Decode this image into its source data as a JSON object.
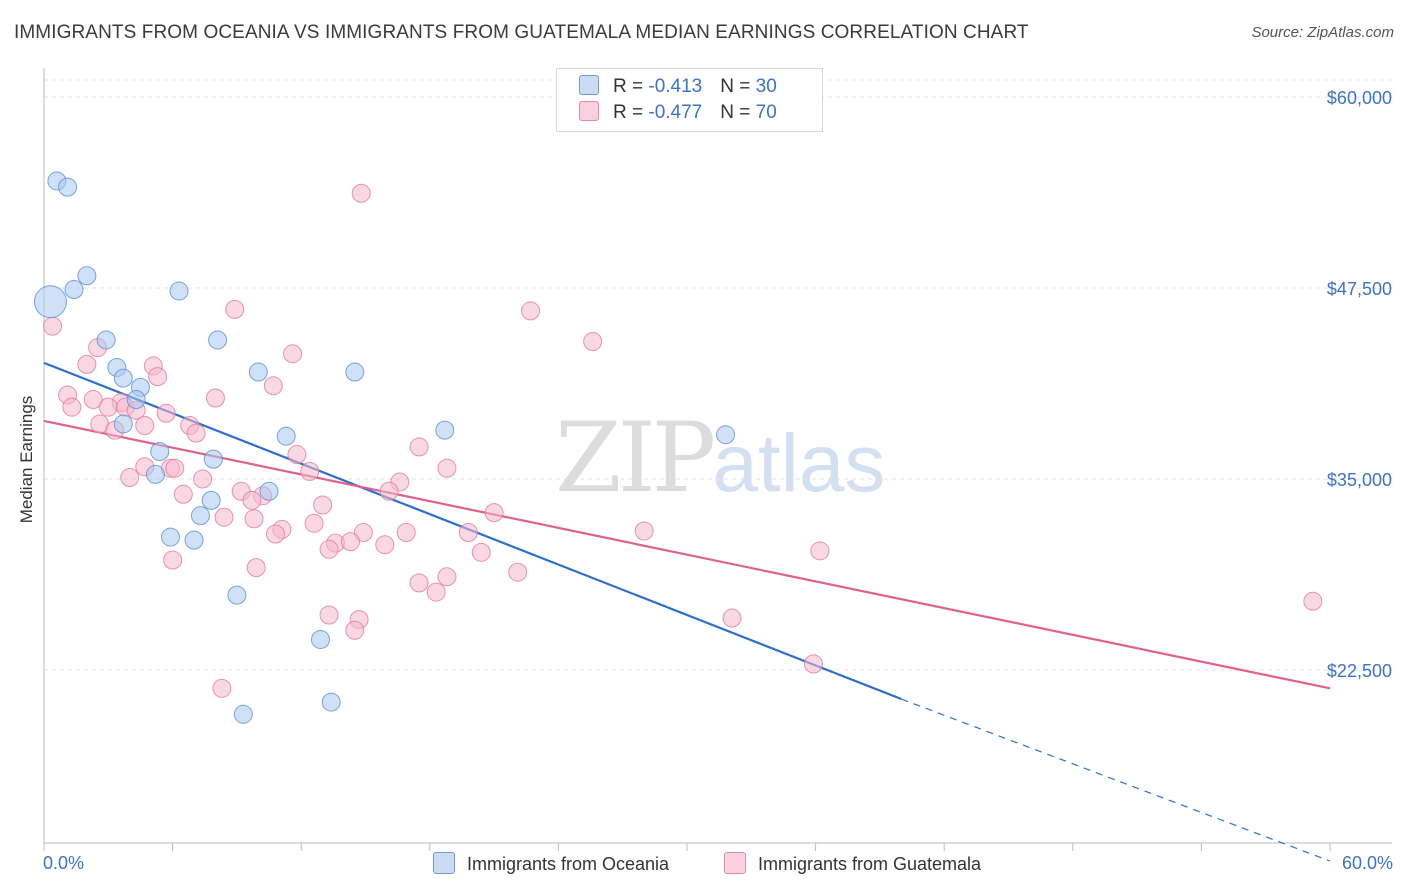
{
  "title": "IMMIGRANTS FROM OCEANIA VS IMMIGRANTS FROM GUATEMALA MEDIAN EARNINGS CORRELATION CHART",
  "source": "Source: ZipAtlas.com",
  "watermark": {
    "zip": "ZIP",
    "atlas": "atlas"
  },
  "legend": {
    "rows": [
      {
        "r_label": "R = ",
        "r_value": "-0.413",
        "n_label": "N = ",
        "n_value": "30",
        "color": "#a8c8ee"
      },
      {
        "r_label": "R = ",
        "r_value": "-0.477",
        "n_label": "N = ",
        "n_value": "70",
        "color": "#f5b8cc"
      }
    ]
  },
  "colors": {
    "oceania_fill": "#a8c8ee",
    "oceania_stroke": "#5b8fd1",
    "oceania_line": "#2d6fce",
    "guatemala_fill": "#f5b8cc",
    "guatemala_stroke": "#e07a9e",
    "guatemala_line": "#e0608e",
    "tick_label": "#3b73c8",
    "grid": "#e0e0e0"
  },
  "chart_data": {
    "type": "scatter",
    "ylabel": "Median Earnings",
    "x_tick_labels": {
      "min": "0.0%",
      "max": "60.0%"
    },
    "xlim": [
      0,
      60
    ],
    "ylim": [
      10000,
      62000
    ],
    "y_ticks": [
      {
        "value": 60000,
        "label": "$60,000"
      },
      {
        "value": 47500,
        "label": "$47,500"
      },
      {
        "value": 35000,
        "label": "$35,000"
      },
      {
        "value": 22500,
        "label": "$22,500"
      }
    ],
    "grid": "horizontal-dashed",
    "legend_position": "top-center",
    "series": [
      {
        "name": "Immigrants from Oceania",
        "points": [
          [
            0.6,
            54500
          ],
          [
            1.1,
            54100
          ],
          [
            0.3,
            46600,
            "large"
          ],
          [
            2.0,
            48300
          ],
          [
            1.4,
            47400
          ],
          [
            6.3,
            47300
          ],
          [
            2.9,
            44100
          ],
          [
            8.1,
            44100
          ],
          [
            3.4,
            42300
          ],
          [
            3.7,
            41600
          ],
          [
            4.5,
            41000
          ],
          [
            4.3,
            40200
          ],
          [
            10.0,
            42000
          ],
          [
            14.5,
            42000
          ],
          [
            3.7,
            38600
          ],
          [
            11.3,
            37800
          ],
          [
            18.7,
            38200
          ],
          [
            31.8,
            37900
          ],
          [
            5.4,
            36800
          ],
          [
            7.9,
            36300
          ],
          [
            5.2,
            35300
          ],
          [
            10.5,
            34200
          ],
          [
            7.3,
            32600
          ],
          [
            7.8,
            33600
          ],
          [
            5.9,
            31200
          ],
          [
            7.0,
            31000
          ],
          [
            9.0,
            27400
          ],
          [
            12.9,
            24500
          ],
          [
            9.3,
            19600
          ],
          [
            13.4,
            20400
          ]
        ],
        "trend": {
          "x0": 0.0,
          "y0": 42600,
          "x1": 40.0,
          "y1": 20600,
          "dashed_to_x": 60.0,
          "dashed_to_y": 10000
        }
      },
      {
        "name": "Immigrants from Guatemala",
        "points": [
          [
            0.4,
            45000
          ],
          [
            14.8,
            53700
          ],
          [
            22.7,
            46000
          ],
          [
            8.9,
            46100
          ],
          [
            25.6,
            44000
          ],
          [
            11.6,
            43200
          ],
          [
            2.0,
            42500
          ],
          [
            5.1,
            42400
          ],
          [
            5.3,
            41700
          ],
          [
            10.7,
            41100
          ],
          [
            1.1,
            40500
          ],
          [
            2.3,
            40200
          ],
          [
            3.6,
            40000
          ],
          [
            8.0,
            40300
          ],
          [
            1.3,
            39700
          ],
          [
            3.0,
            39700
          ],
          [
            3.8,
            39700
          ],
          [
            4.3,
            39500
          ],
          [
            5.7,
            39300
          ],
          [
            2.6,
            38600
          ],
          [
            3.3,
            38200
          ],
          [
            4.7,
            38500
          ],
          [
            6.8,
            38500
          ],
          [
            7.1,
            38000
          ],
          [
            17.5,
            37100
          ],
          [
            11.8,
            36600
          ],
          [
            4.7,
            35800
          ],
          [
            5.9,
            35700
          ],
          [
            6.1,
            35700
          ],
          [
            18.8,
            35700
          ],
          [
            4.0,
            35100
          ],
          [
            7.4,
            35000
          ],
          [
            16.6,
            34800
          ],
          [
            9.2,
            34200
          ],
          [
            10.2,
            33900
          ],
          [
            9.7,
            33600
          ],
          [
            16.1,
            34200
          ],
          [
            13.0,
            33300
          ],
          [
            21.0,
            32800
          ],
          [
            8.4,
            32500
          ],
          [
            9.8,
            32400
          ],
          [
            12.6,
            32100
          ],
          [
            11.1,
            31700
          ],
          [
            14.9,
            31500
          ],
          [
            16.9,
            31500
          ],
          [
            19.8,
            31500
          ],
          [
            28.0,
            31600
          ],
          [
            10.8,
            31400
          ],
          [
            13.6,
            30800
          ],
          [
            14.3,
            30900
          ],
          [
            13.3,
            30400
          ],
          [
            15.9,
            30700
          ],
          [
            20.4,
            30200
          ],
          [
            36.2,
            30300
          ],
          [
            6.0,
            29700
          ],
          [
            9.9,
            29200
          ],
          [
            22.1,
            28900
          ],
          [
            18.8,
            28600
          ],
          [
            17.5,
            28200
          ],
          [
            18.3,
            27600
          ],
          [
            59.2,
            27000
          ],
          [
            13.3,
            26100
          ],
          [
            14.7,
            25800
          ],
          [
            32.1,
            25900
          ],
          [
            14.5,
            25100
          ],
          [
            35.9,
            22900
          ],
          [
            8.3,
            21300
          ],
          [
            2.5,
            43600
          ],
          [
            6.5,
            34000
          ],
          [
            12.4,
            35500
          ]
        ],
        "trend": {
          "x0": 0.0,
          "y0": 38800,
          "x1": 60.0,
          "y1": 21300
        }
      }
    ]
  }
}
